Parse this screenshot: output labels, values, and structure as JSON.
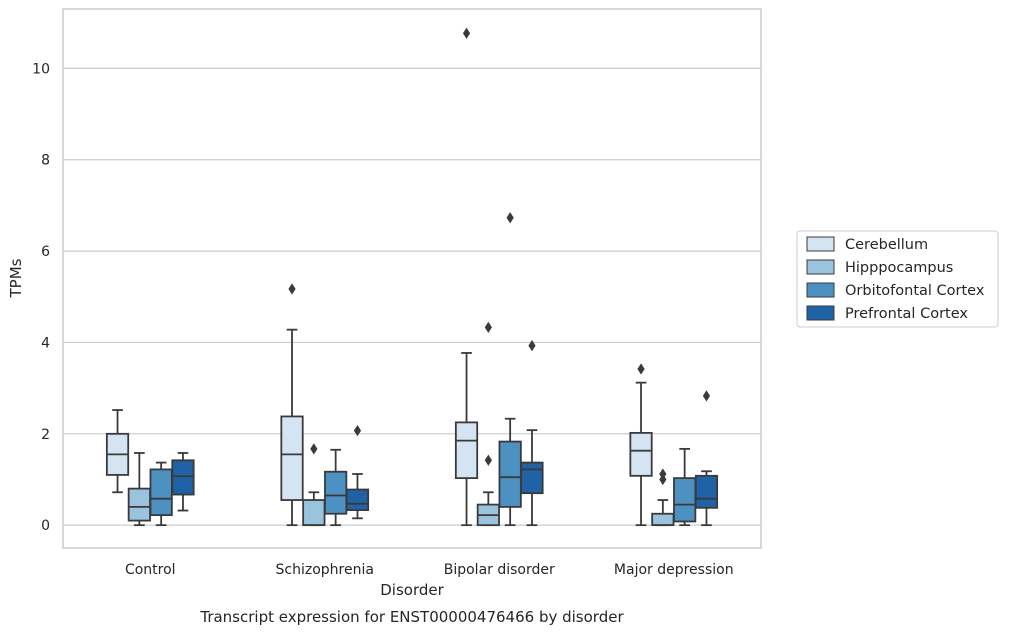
{
  "chart_data": {
    "type": "box",
    "title": "Transcript expression for ENST00000476466 by disorder",
    "xlabel": "Disorder",
    "ylabel": "TPMs",
    "ylim": [
      -0.5,
      11.3
    ],
    "yticks": [
      0,
      2,
      4,
      6,
      8,
      10
    ],
    "grid": "horizontal",
    "legend_position": "right",
    "categories": [
      "Control",
      "Schizophrenia",
      "Bipolar disorder",
      "Major depression"
    ],
    "series": [
      {
        "name": "Cerebellum",
        "color": "#d4e4f3",
        "boxes": [
          {
            "min": 0.72,
            "q1": 1.1,
            "median": 1.55,
            "q3": 2.0,
            "max": 2.52,
            "outliers": []
          },
          {
            "min": 0.0,
            "q1": 0.55,
            "median": 1.55,
            "q3": 2.38,
            "max": 4.28,
            "outliers": [
              5.17
            ]
          },
          {
            "min": 0.0,
            "q1": 1.03,
            "median": 1.85,
            "q3": 2.25,
            "max": 3.77,
            "outliers": [
              10.77
            ]
          },
          {
            "min": 0.0,
            "q1": 1.08,
            "median": 1.63,
            "q3": 2.02,
            "max": 3.12,
            "outliers": [
              3.42
            ]
          }
        ]
      },
      {
        "name": "Hipppocampus",
        "color": "#9ac4de",
        "boxes": [
          {
            "min": 0.0,
            "q1": 0.1,
            "median": 0.4,
            "q3": 0.8,
            "max": 1.58,
            "outliers": []
          },
          {
            "min": 0.0,
            "q1": 0.0,
            "median": 0.0,
            "q3": 0.55,
            "max": 0.72,
            "outliers": [
              1.67
            ]
          },
          {
            "min": 0.0,
            "q1": 0.0,
            "median": 0.22,
            "q3": 0.45,
            "max": 0.72,
            "outliers": [
              1.42,
              4.33
            ]
          },
          {
            "min": 0.0,
            "q1": 0.0,
            "median": 0.0,
            "q3": 0.25,
            "max": 0.55,
            "outliers": [
              1.0,
              1.12
            ]
          }
        ]
      },
      {
        "name": "Orbitofontal Cortex",
        "color": "#4d91c2",
        "boxes": [
          {
            "min": 0.0,
            "q1": 0.22,
            "median": 0.58,
            "q3": 1.22,
            "max": 1.37,
            "outliers": []
          },
          {
            "min": 0.0,
            "q1": 0.25,
            "median": 0.65,
            "q3": 1.17,
            "max": 1.65,
            "outliers": []
          },
          {
            "min": 0.0,
            "q1": 0.4,
            "median": 1.05,
            "q3": 1.83,
            "max": 2.33,
            "outliers": [
              6.73
            ]
          },
          {
            "min": 0.0,
            "q1": 0.08,
            "median": 0.45,
            "q3": 1.03,
            "max": 1.67,
            "outliers": []
          }
        ]
      },
      {
        "name": "Prefrontal Cortex",
        "color": "#1f63a6",
        "boxes": [
          {
            "min": 0.32,
            "q1": 0.67,
            "median": 1.07,
            "q3": 1.42,
            "max": 1.58,
            "outliers": []
          },
          {
            "min": 0.15,
            "q1": 0.33,
            "median": 0.47,
            "q3": 0.78,
            "max": 1.12,
            "outliers": [
              2.07
            ]
          },
          {
            "min": 0.0,
            "q1": 0.7,
            "median": 1.22,
            "q3": 1.37,
            "max": 2.08,
            "outliers": [
              3.93
            ]
          },
          {
            "min": 0.0,
            "q1": 0.38,
            "median": 0.58,
            "q3": 1.08,
            "max": 1.18,
            "outliers": [
              2.83
            ]
          }
        ]
      }
    ]
  }
}
